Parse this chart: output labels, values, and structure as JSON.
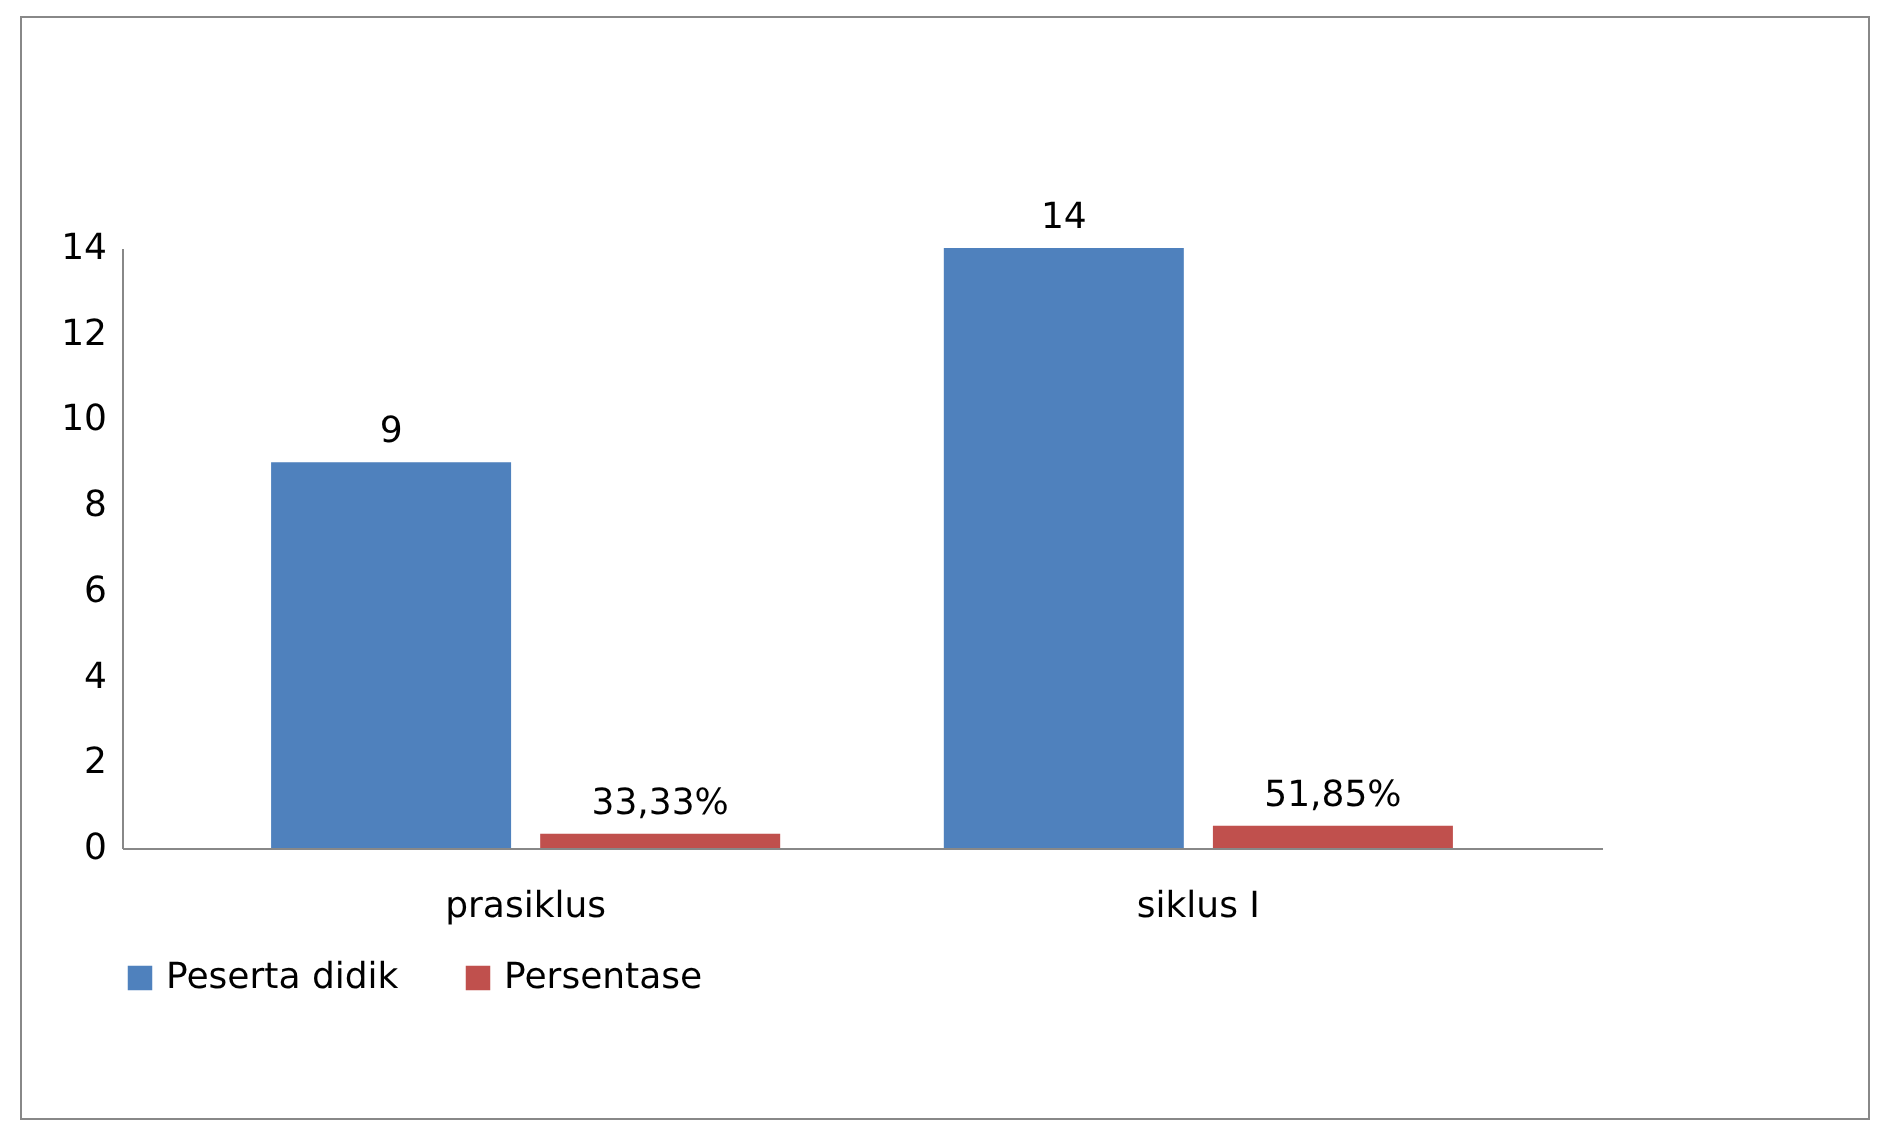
{
  "chart_data": {
    "type": "bar",
    "categories": [
      "prasiklus",
      "siklus I"
    ],
    "series": [
      {
        "name": "Peserta didik",
        "color": "#4f81bd",
        "values": [
          9,
          14
        ],
        "value_labels": [
          "9",
          "14"
        ]
      },
      {
        "name": "Persentase",
        "color": "#c0504d",
        "values": [
          0.3333,
          0.5185
        ],
        "value_labels": [
          "33,33%",
          "51,85%"
        ]
      }
    ],
    "ylim": [
      0,
      14
    ],
    "yticks": [
      0,
      2,
      4,
      6,
      8,
      10,
      12,
      14
    ],
    "grid": false,
    "legend": "bottom"
  }
}
